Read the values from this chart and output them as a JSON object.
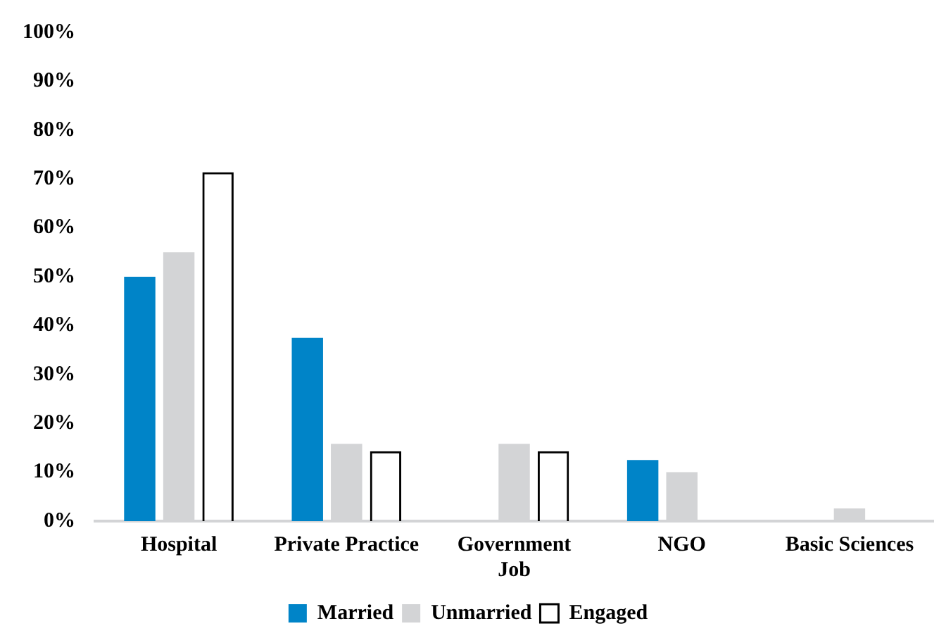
{
  "chart_data": {
    "type": "bar",
    "categories": [
      "Hospital",
      "Private Practice",
      "Government Job",
      "NGO",
      "Basic Sciences"
    ],
    "series": [
      {
        "name": "Married",
        "color": "#0084c8",
        "values": [
          50,
          37.5,
          0,
          12.5,
          0
        ]
      },
      {
        "name": "Unmarried",
        "color": "#d3d4d6",
        "values": [
          55,
          15.8,
          15.8,
          10,
          2.6
        ]
      },
      {
        "name": "Engaged",
        "color": "#000000",
        "values": [
          71.4,
          14.3,
          14.3,
          0,
          0
        ]
      }
    ],
    "ylim": [
      0,
      100
    ],
    "yticks": [
      {
        "value": 0,
        "label": "0%"
      },
      {
        "value": 10,
        "label": "10%"
      },
      {
        "value": 20,
        "label": "20%"
      },
      {
        "value": 30,
        "label": "30%"
      },
      {
        "value": 40,
        "label": "40%"
      },
      {
        "value": 50,
        "label": "50%"
      },
      {
        "value": 60,
        "label": "60%"
      },
      {
        "value": 70,
        "label": "70%"
      },
      {
        "value": 80,
        "label": "80%"
      },
      {
        "value": 90,
        "label": "90%"
      },
      {
        "value": 100,
        "label": "100%"
      }
    ],
    "grid": false,
    "legend": "bottom"
  }
}
